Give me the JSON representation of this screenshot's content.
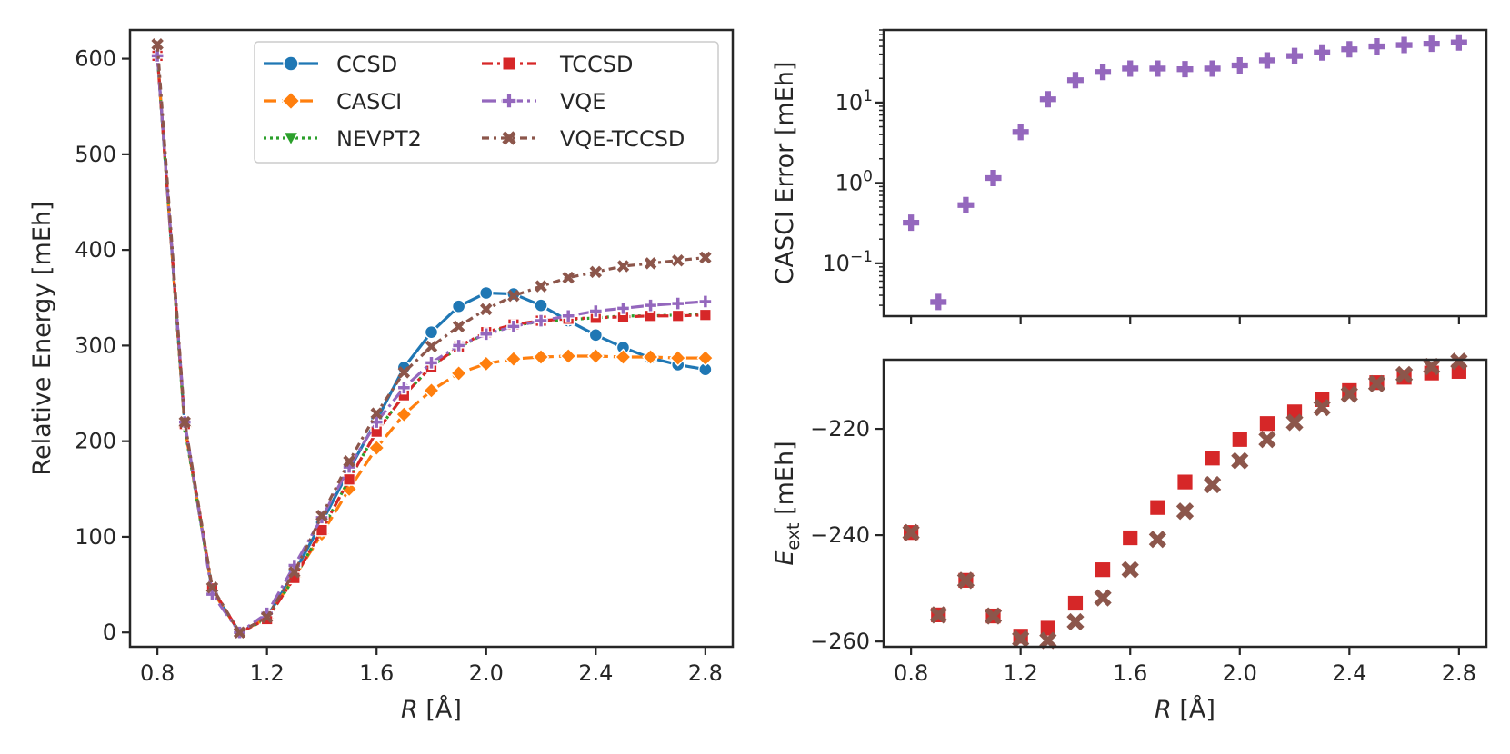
{
  "chart_data": [
    {
      "type": "line",
      "panel": "left",
      "xlabel": "R [Å]",
      "ylabel": "Relative Energy [mEh]",
      "xlim": [
        0.7,
        2.9
      ],
      "ylim": [
        -15,
        630
      ],
      "xticks": [
        "0.8",
        "1.2",
        "1.6",
        "2.0",
        "2.4",
        "2.8"
      ],
      "yticks": [
        "0",
        "100",
        "200",
        "300",
        "400",
        "500",
        "600"
      ],
      "legend_position": "top-right",
      "x": [
        0.8,
        0.9,
        1.0,
        1.1,
        1.2,
        1.3,
        1.4,
        1.5,
        1.6,
        1.7,
        1.8,
        1.9,
        2.0,
        2.1,
        2.2,
        2.3,
        2.4,
        2.5,
        2.6,
        2.7,
        2.8
      ],
      "series": [
        {
          "name": "CCSD",
          "color": "#1f77b4",
          "marker": "circle",
          "dash": "solid",
          "values": [
            603,
            216,
            44,
            0,
            16,
            63,
            115,
            170,
            222,
            277,
            314,
            341,
            355,
            354,
            342,
            326,
            311,
            298,
            287,
            280,
            275
          ]
        },
        {
          "name": "CASCI",
          "color": "#ff7f0e",
          "marker": "diamond",
          "dash": "dashed",
          "values": [
            603,
            215,
            44,
            0,
            15,
            58,
            103,
            150,
            193,
            228,
            253,
            271,
            281,
            286,
            288,
            289,
            289,
            288,
            288,
            287,
            287
          ]
        },
        {
          "name": "NEVPT2",
          "color": "#2ca02c",
          "marker": "triangle-down",
          "dash": "dotted",
          "values": [
            603,
            213,
            45,
            0,
            14,
            57,
            107,
            160,
            210,
            248,
            278,
            298,
            313,
            321,
            325,
            327,
            329,
            331,
            331,
            332,
            333
          ]
        },
        {
          "name": "TCCSD",
          "color": "#d62728",
          "marker": "square",
          "dash": "dashdot",
          "values": [
            603,
            218,
            46,
            0,
            14,
            57,
            107,
            160,
            210,
            248,
            278,
            299,
            314,
            322,
            326,
            328,
            329,
            330,
            331,
            331,
            332
          ]
        },
        {
          "name": "VQE",
          "color": "#9467bd",
          "marker": "plus",
          "dash": "dashdot2",
          "values": [
            603,
            220,
            40,
            0,
            20,
            70,
            120,
            173,
            220,
            256,
            282,
            300,
            312,
            320,
            326,
            331,
            336,
            339,
            342,
            344,
            346
          ]
        },
        {
          "name": "VQE-TCCSD",
          "color": "#8c564b",
          "marker": "x",
          "dash": "dashdot3",
          "values": [
            615,
            220,
            47,
            0,
            16,
            63,
            122,
            179,
            229,
            272,
            299,
            320,
            338,
            352,
            362,
            371,
            377,
            383,
            386,
            389,
            392
          ]
        }
      ]
    },
    {
      "type": "scatter",
      "panel": "top-right",
      "ylabel": "CASCI Error [mEh]",
      "yscale": "log",
      "ylim": [
        0.022,
        80
      ],
      "xlim": [
        0.7,
        2.9
      ],
      "yticks": [
        {
          "value": 0.1,
          "label": "10",
          "exp": "−1"
        },
        {
          "value": 1,
          "label": "10",
          "exp": "0"
        },
        {
          "value": 10,
          "label": "10",
          "exp": "1"
        }
      ],
      "series": [
        {
          "name": "VQE",
          "color": "#9467bd",
          "marker": "plus",
          "x": [
            0.8,
            0.9,
            1.0,
            1.1,
            1.2,
            1.3,
            1.4,
            1.5,
            1.6,
            1.7,
            1.8,
            1.9,
            2.0,
            2.1,
            2.2,
            2.3,
            2.4,
            2.5,
            2.6,
            2.7,
            2.8
          ],
          "values": [
            0.32,
            0.033,
            0.53,
            1.15,
            4.3,
            11,
            19,
            24,
            26.5,
            26.5,
            26,
            26.5,
            29,
            33.5,
            38,
            42,
            46,
            50,
            52,
            54,
            56
          ]
        }
      ]
    },
    {
      "type": "scatter",
      "panel": "bottom-right",
      "xlabel": "R [Å]",
      "ylabel_main": "E",
      "ylabel_sub": "ext",
      "ylabel_rest": " [mEh]",
      "xlim": [
        0.7,
        2.9
      ],
      "ylim": [
        -261,
        -207
      ],
      "xticks": [
        "0.8",
        "1.2",
        "1.6",
        "2.0",
        "2.4",
        "2.8"
      ],
      "yticks": [
        "−260",
        "−240",
        "−220"
      ],
      "x": [
        0.8,
        0.9,
        1.0,
        1.1,
        1.2,
        1.3,
        1.4,
        1.5,
        1.6,
        1.7,
        1.8,
        1.9,
        2.0,
        2.1,
        2.2,
        2.3,
        2.4,
        2.5,
        2.6,
        2.7,
        2.8
      ],
      "series": [
        {
          "name": "TCCSD",
          "color": "#d62728",
          "marker": "square",
          "values": [
            -239.5,
            -255,
            -248.5,
            -255.2,
            -259,
            -257.5,
            -252.8,
            -246.5,
            -240.5,
            -234.8,
            -230,
            -225.5,
            -222,
            -219,
            -216.8,
            -214.5,
            -212.8,
            -211.3,
            -210.3,
            -209.5,
            -209.2
          ]
        },
        {
          "name": "VQE-TCCSD",
          "color": "#8c564b",
          "marker": "x",
          "values": [
            -239.5,
            -255,
            -248.5,
            -255.2,
            -259.5,
            -259.8,
            -256.3,
            -251.8,
            -246.5,
            -240.8,
            -235.5,
            -230.5,
            -226,
            -222,
            -218.8,
            -216,
            -213.5,
            -211.5,
            -209.8,
            -208.3,
            -207.3
          ]
        }
      ]
    }
  ]
}
